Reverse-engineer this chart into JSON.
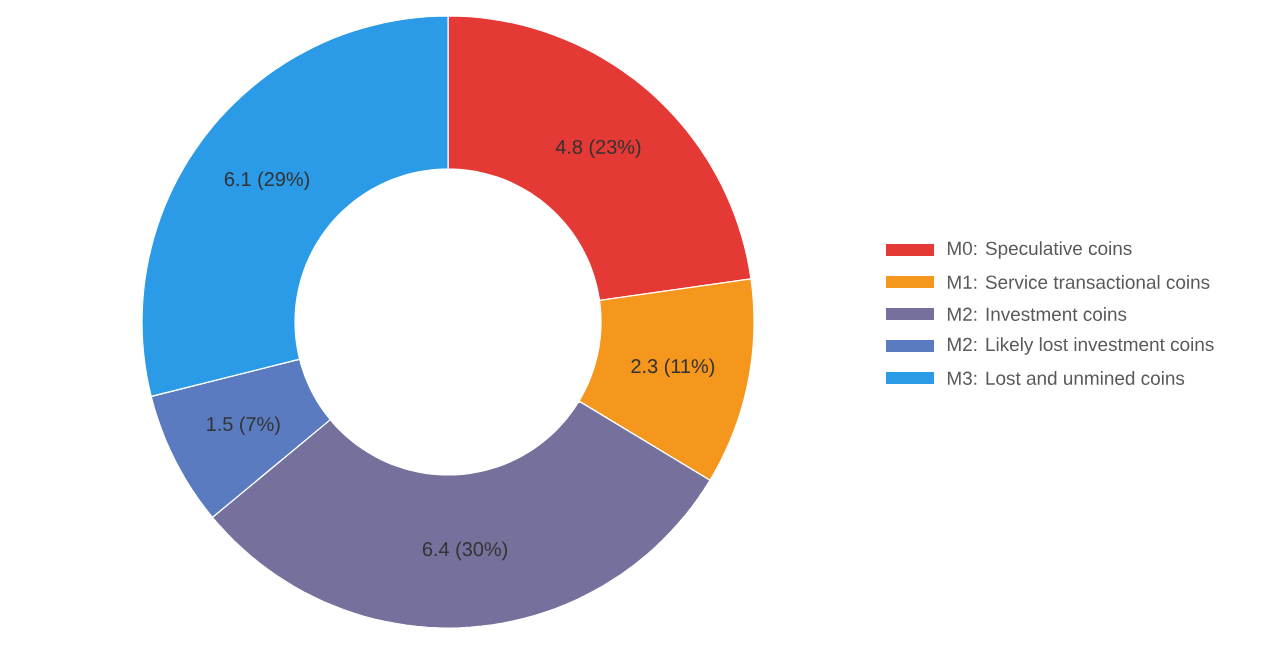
{
  "chart_data": {
    "type": "donut",
    "categories": [
      "M0: Speculative coins",
      "M1: Service transactional coins",
      "M2: Investment coins",
      "M2: Likely lost investment coins",
      "M3: Lost and unmined coins"
    ],
    "values": [
      4.8,
      2.3,
      6.4,
      1.5,
      6.1
    ],
    "value_labels": [
      "4.8 (23%)",
      "2.3 (11%)",
      "6.4 (30%)",
      "1.5 (7%)",
      "6.1 (29%)"
    ],
    "colors": [
      "#e53935",
      "#f5961d",
      "#76719c",
      "#5b7bc0",
      "#2b9be8"
    ],
    "legend": "right"
  }
}
